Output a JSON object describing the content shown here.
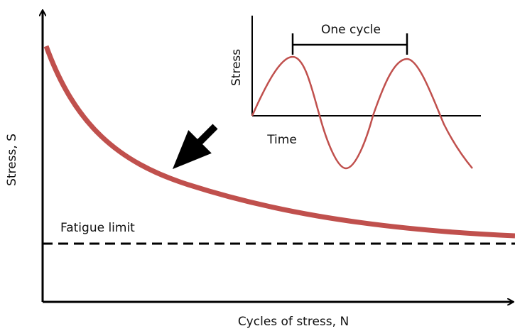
{
  "y_axis_label": "Stress, S",
  "x_axis_label": "Cycles of stress, N",
  "fatigue_limit_label": "Fatigue limit",
  "inset": {
    "cycle_label": "One cycle",
    "y_axis_label": "Stress",
    "x_axis_label": "Time"
  }
}
